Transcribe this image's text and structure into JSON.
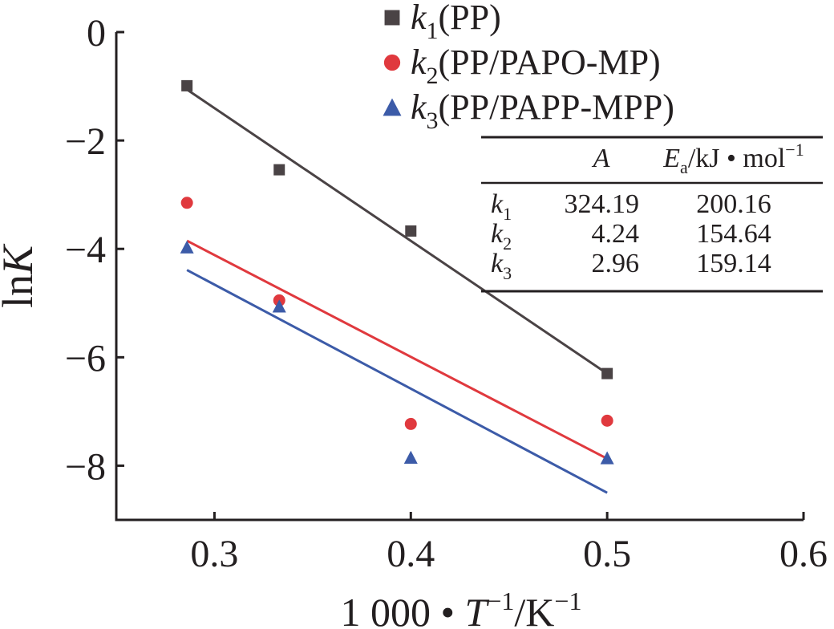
{
  "chart_data": {
    "type": "scatter",
    "title": "",
    "xlabel": {
      "prefix": "1 000 • ",
      "var": "T",
      "exp": "−1",
      "unit": "/K",
      "unit_exp": "−1"
    },
    "ylabel": {
      "pre": "ln",
      "var": "K"
    },
    "xlim": [
      0.25,
      0.6
    ],
    "ylim": [
      -9,
      0
    ],
    "x_ticks": [
      0.3,
      0.4,
      0.5,
      0.6
    ],
    "x_tick_labels": [
      "0.3",
      "0.4",
      "0.5",
      "0.6"
    ],
    "y_ticks": [
      0,
      -2,
      -4,
      -6,
      -8
    ],
    "y_tick_labels": [
      "0",
      "−2",
      "−4",
      "−6",
      "−8"
    ],
    "grid": false,
    "legend_position": "top-center",
    "series": [
      {
        "var": "k",
        "sub": "1",
        "label": "(PP)",
        "marker": "square",
        "color": "#4a4345",
        "x": [
          0.286,
          0.333,
          0.4,
          0.5
        ],
        "y": [
          -0.99,
          -2.54,
          -3.67,
          -6.3
        ],
        "fit": {
          "x": [
            0.286,
            0.5
          ],
          "y": [
            -1.06,
            -6.3
          ]
        }
      },
      {
        "var": "k",
        "sub": "2",
        "label": "(PP/PAPO-MP)",
        "marker": "circle",
        "color": "#e0393e",
        "x": [
          0.286,
          0.333,
          0.4,
          0.5
        ],
        "y": [
          -3.15,
          -4.95,
          -7.23,
          -7.17
        ],
        "fit": {
          "x": [
            0.286,
            0.5
          ],
          "y": [
            -3.85,
            -7.87
          ]
        }
      },
      {
        "var": "k",
        "sub": "3",
        "label": "(PP/PAPP-MPP)",
        "marker": "triangle",
        "color": "#3c5ba8",
        "x": [
          0.286,
          0.333,
          0.4,
          0.5
        ],
        "y": [
          -3.97,
          -5.06,
          -7.85,
          -7.86
        ],
        "fit": {
          "x": [
            0.286,
            0.5
          ],
          "y": [
            -4.39,
            -8.5
          ]
        }
      }
    ],
    "inset_table": {
      "columns": [
        {
          "var": "A"
        },
        {
          "var": "E",
          "sub": "a",
          "unit": "/kJ • mol",
          "unit_exp": "−1"
        }
      ],
      "rows": [
        {
          "var": "k",
          "sub": "1",
          "A": "324.19",
          "Ea": "200.16"
        },
        {
          "var": "k",
          "sub": "2",
          "A": "4.24",
          "Ea": "154.64"
        },
        {
          "var": "k",
          "sub": "3",
          "A": "2.96",
          "Ea": "159.14"
        }
      ]
    }
  }
}
